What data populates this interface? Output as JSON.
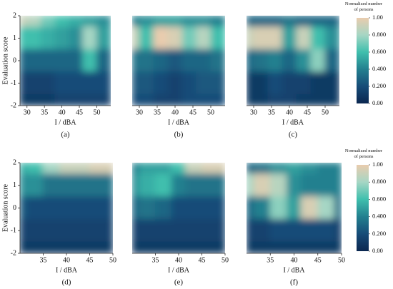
{
  "chart_data": [
    {
      "type": "heatmap",
      "panel_label": "(a)",
      "xlabel": "I / dBA",
      "ylabel": "Evaluation score",
      "xlim": [
        28,
        54
      ],
      "xticks": [
        30,
        35,
        40,
        45,
        50
      ],
      "ylim": [
        -2,
        2
      ],
      "yticks": [
        -2,
        -1,
        0,
        1,
        2
      ],
      "x": [
        28,
        32,
        36,
        40,
        44,
        48,
        52
      ],
      "y": [
        2,
        1,
        0,
        -1,
        -2
      ],
      "z": [
        [
          0.9,
          0.85,
          0.7,
          0.6,
          0.55,
          0.5,
          0.45
        ],
        [
          0.6,
          0.6,
          0.55,
          0.5,
          0.45,
          0.8,
          0.5
        ],
        [
          0.3,
          0.3,
          0.3,
          0.3,
          0.3,
          0.6,
          0.3
        ],
        [
          0.15,
          0.15,
          0.15,
          0.2,
          0.2,
          0.2,
          0.2
        ],
        [
          0.1,
          0.1,
          0.1,
          0.15,
          0.15,
          0.15,
          0.15
        ]
      ]
    },
    {
      "type": "heatmap",
      "panel_label": "(b)",
      "xlabel": "I / dBA",
      "xlim": [
        28,
        54
      ],
      "xticks": [
        30,
        35,
        40,
        45,
        50
      ],
      "ylim": [
        -2,
        2
      ],
      "x": [
        28,
        32,
        36,
        40,
        44,
        48,
        52
      ],
      "y": [
        2,
        1,
        0,
        -1,
        -2
      ],
      "z": [
        [
          0.4,
          0.45,
          0.5,
          0.5,
          0.45,
          0.45,
          0.4
        ],
        [
          0.9,
          0.6,
          1.0,
          0.95,
          0.7,
          0.85,
          0.6
        ],
        [
          0.35,
          0.35,
          0.3,
          0.25,
          0.3,
          0.3,
          0.35
        ],
        [
          0.25,
          0.25,
          0.2,
          0.15,
          0.2,
          0.25,
          0.25
        ],
        [
          0.2,
          0.2,
          0.15,
          0.15,
          0.2,
          0.2,
          0.2
        ]
      ]
    },
    {
      "type": "heatmap",
      "panel_label": "(c)",
      "xlabel": "I / dBA",
      "xlim": [
        28,
        54
      ],
      "xticks": [
        30,
        35,
        40,
        45,
        50
      ],
      "ylim": [
        -2,
        2
      ],
      "x": [
        28,
        32,
        36,
        40,
        44,
        48,
        52
      ],
      "y": [
        2,
        1,
        0,
        -1,
        -2
      ],
      "z": [
        [
          0.3,
          0.3,
          0.3,
          0.35,
          0.3,
          0.3,
          0.3
        ],
        [
          0.9,
          0.95,
          0.95,
          0.5,
          0.9,
          0.6,
          0.45
        ],
        [
          0.3,
          0.35,
          0.4,
          0.3,
          0.45,
          0.75,
          0.3
        ],
        [
          0.1,
          0.1,
          0.2,
          0.15,
          0.15,
          0.1,
          0.1
        ],
        [
          0.1,
          0.1,
          0.15,
          0.15,
          0.1,
          0.1,
          0.1
        ]
      ]
    },
    {
      "type": "heatmap",
      "panel_label": "(d)",
      "xlabel": "I / dBA",
      "ylabel": "Evaluation score",
      "xlim": [
        30,
        50
      ],
      "xticks": [
        35,
        40,
        45,
        50
      ],
      "ylim": [
        -2,
        2
      ],
      "yticks": [
        -2,
        -1,
        0,
        1,
        2
      ],
      "x": [
        30,
        33,
        37,
        40,
        43,
        47,
        50
      ],
      "y": [
        2,
        1,
        0,
        -1,
        -2
      ],
      "z": [
        [
          0.55,
          0.6,
          0.8,
          0.9,
          0.9,
          0.95,
          0.95
        ],
        [
          0.45,
          0.45,
          0.35,
          0.35,
          0.35,
          0.35,
          0.35
        ],
        [
          0.25,
          0.2,
          0.2,
          0.2,
          0.2,
          0.2,
          0.2
        ],
        [
          0.15,
          0.15,
          0.15,
          0.15,
          0.15,
          0.15,
          0.15
        ],
        [
          0.1,
          0.1,
          0.1,
          0.1,
          0.1,
          0.1,
          0.1
        ]
      ]
    },
    {
      "type": "heatmap",
      "panel_label": "(e)",
      "xlabel": "I / dBA",
      "xlim": [
        30,
        50
      ],
      "xticks": [
        35,
        40,
        45,
        50
      ],
      "ylim": [
        -2,
        2
      ],
      "x": [
        30,
        33,
        37,
        40,
        43,
        47,
        50
      ],
      "y": [
        2,
        1,
        0,
        -1,
        -2
      ],
      "z": [
        [
          0.4,
          0.5,
          0.5,
          0.6,
          0.9,
          0.95,
          0.95
        ],
        [
          0.45,
          0.55,
          0.6,
          0.4,
          0.35,
          0.35,
          0.35
        ],
        [
          0.3,
          0.35,
          0.3,
          0.2,
          0.2,
          0.2,
          0.2
        ],
        [
          0.15,
          0.15,
          0.15,
          0.15,
          0.15,
          0.15,
          0.15
        ],
        [
          0.1,
          0.1,
          0.1,
          0.1,
          0.1,
          0.1,
          0.1
        ]
      ]
    },
    {
      "type": "heatmap",
      "panel_label": "(f)",
      "xlabel": "I / dBA",
      "xlim": [
        30,
        50
      ],
      "xticks": [
        35,
        40,
        45,
        50
      ],
      "ylim": [
        -2,
        2
      ],
      "x": [
        30,
        33,
        37,
        40,
        43,
        47,
        50
      ],
      "y": [
        2,
        1,
        0,
        -1,
        -2
      ],
      "z": [
        [
          0.3,
          0.35,
          0.45,
          0.5,
          0.45,
          0.4,
          0.4
        ],
        [
          0.8,
          0.95,
          0.85,
          0.45,
          0.4,
          0.4,
          0.4
        ],
        [
          0.3,
          0.4,
          0.75,
          0.5,
          0.95,
          0.8,
          0.35
        ],
        [
          0.15,
          0.15,
          0.2,
          0.2,
          0.2,
          0.2,
          0.15
        ],
        [
          0.1,
          0.1,
          0.1,
          0.1,
          0.1,
          0.1,
          0.1
        ]
      ]
    }
  ],
  "colorbar": {
    "title": "Normalized number of persons",
    "lim": [
      0,
      1
    ],
    "ticks": [
      {
        "value": 0,
        "label": "0.00"
      },
      {
        "value": 0.2,
        "label": "0.200"
      },
      {
        "value": 0.4,
        "label": "0.400"
      },
      {
        "value": 0.6,
        "label": "0.600"
      },
      {
        "value": 0.8,
        "label": "0.800"
      },
      {
        "value": 1,
        "label": "1.00"
      }
    ],
    "colormap": [
      "#0b2750",
      "#174c78",
      "#23808f",
      "#3fbfad",
      "#a6d6c4",
      "#e9ccae"
    ]
  }
}
